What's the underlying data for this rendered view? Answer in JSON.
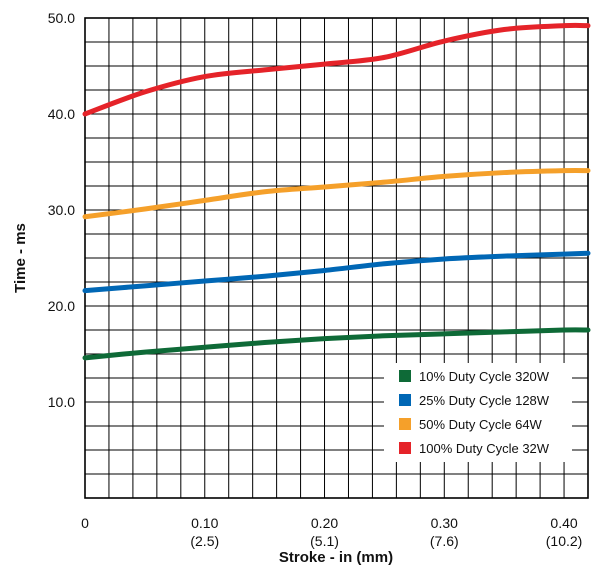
{
  "chart_data": {
    "type": "line",
    "xlabel": "Stroke - in (mm)",
    "ylabel": "Time - ms",
    "xlim": [
      0,
      0.42
    ],
    "ylim": [
      0,
      50
    ],
    "x_ticks": [
      {
        "value": 0,
        "label": "0",
        "sublabel": ""
      },
      {
        "value": 0.1,
        "label": "0.10",
        "sublabel": "(2.5)"
      },
      {
        "value": 0.2,
        "label": "0.20",
        "sublabel": "(5.1)"
      },
      {
        "value": 0.3,
        "label": "0.30",
        "sublabel": "(7.6)"
      },
      {
        "value": 0.4,
        "label": "0.40",
        "sublabel": "(10.2)"
      }
    ],
    "y_ticks": [
      {
        "value": 10,
        "label": "10.0"
      },
      {
        "value": 20,
        "label": "20.0"
      },
      {
        "value": 30,
        "label": "30.0"
      },
      {
        "value": 40,
        "label": "40.0"
      },
      {
        "value": 50,
        "label": "50.0"
      }
    ],
    "grid": true,
    "legend_position": "bottom-right",
    "series": [
      {
        "name": "10% Duty Cycle 320W",
        "color": "#0e6a37",
        "x": [
          0,
          0.05,
          0.1,
          0.15,
          0.2,
          0.25,
          0.3,
          0.35,
          0.4,
          0.42
        ],
        "values": [
          14.6,
          15.2,
          15.7,
          16.2,
          16.6,
          16.9,
          17.1,
          17.3,
          17.5,
          17.5
        ]
      },
      {
        "name": "25% Duty Cycle 128W",
        "color": "#0067b5",
        "x": [
          0,
          0.05,
          0.1,
          0.15,
          0.2,
          0.25,
          0.3,
          0.35,
          0.4,
          0.42
        ],
        "values": [
          21.6,
          22.1,
          22.6,
          23.1,
          23.7,
          24.4,
          24.9,
          25.2,
          25.4,
          25.5
        ]
      },
      {
        "name": "50% Duty Cycle 64W",
        "color": "#f5a02a",
        "x": [
          0,
          0.05,
          0.1,
          0.15,
          0.2,
          0.25,
          0.3,
          0.35,
          0.4,
          0.42
        ],
        "values": [
          29.3,
          30.1,
          31.0,
          31.9,
          32.4,
          32.9,
          33.5,
          33.9,
          34.1,
          34.1
        ]
      },
      {
        "name": "100% Duty Cycle 32W",
        "color": "#e52329",
        "x": [
          0,
          0.05,
          0.1,
          0.15,
          0.2,
          0.25,
          0.3,
          0.35,
          0.4,
          0.42
        ],
        "values": [
          40.0,
          42.3,
          43.9,
          44.6,
          45.2,
          45.9,
          47.6,
          48.8,
          49.2,
          49.2
        ]
      }
    ]
  }
}
